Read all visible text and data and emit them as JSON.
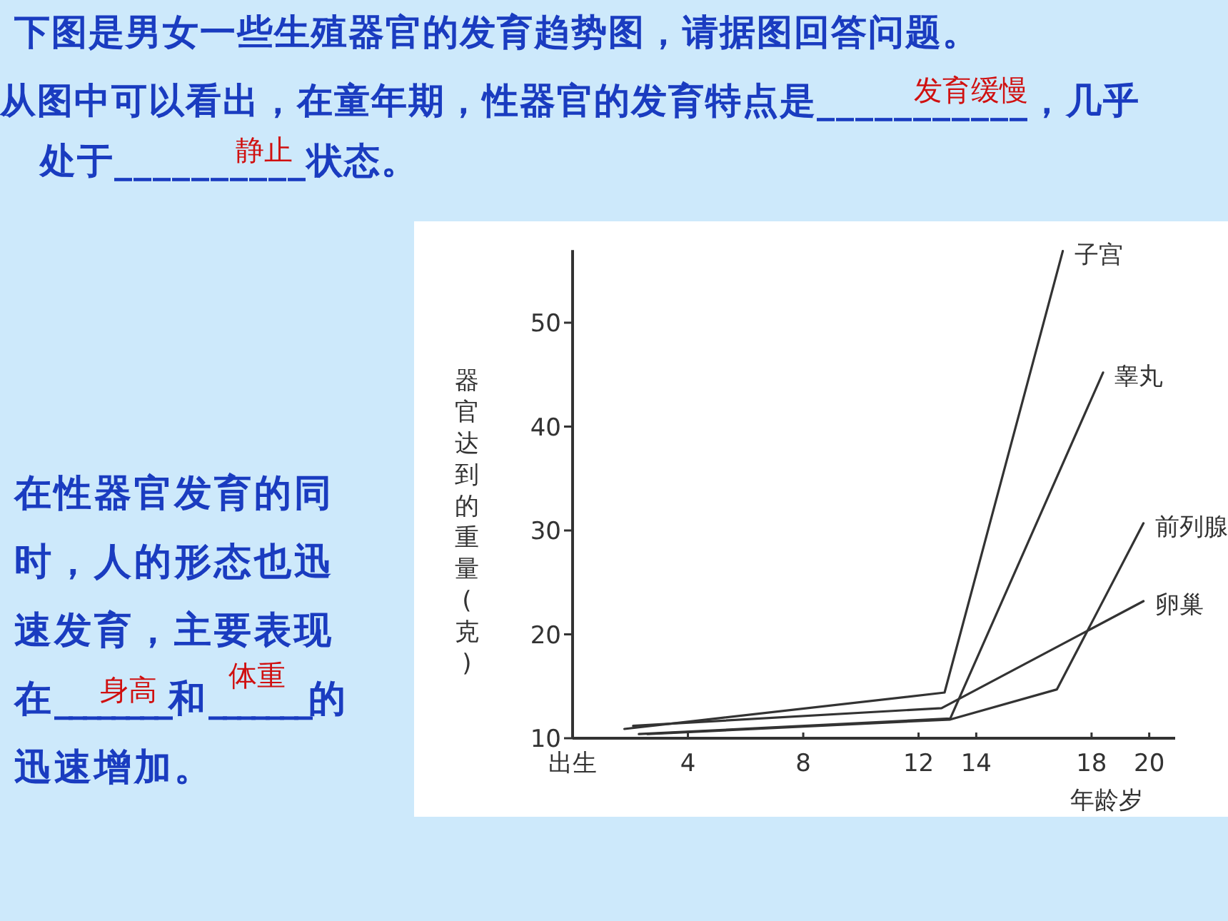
{
  "chart_data": {
    "type": "line",
    "xlabel": "年龄岁",
    "ylabel": "器官达到的重量(克)",
    "xlim": [
      0,
      20.9
    ],
    "ylim": [
      10,
      57
    ],
    "xticks": [
      {
        "value": 0,
        "label": "出生"
      },
      4,
      8,
      12,
      14,
      18,
      20
    ],
    "yticks": [
      10,
      20,
      30,
      40,
      50
    ],
    "series": [
      {
        "name": "子宫",
        "color": "#333333",
        "x": [
          1.8,
          12.9,
          17
        ],
        "values": [
          10.9,
          14.4,
          56.9
        ]
      },
      {
        "name": "睾丸",
        "color": "#333333",
        "x": [
          2.3,
          13.1,
          18.4
        ],
        "values": [
          10.4,
          11.9,
          45.2
        ]
      },
      {
        "name": "前列腺",
        "color": "#333333",
        "x": [
          2.6,
          13.1,
          16.8,
          19.8
        ],
        "values": [
          10.4,
          11.8,
          14.7,
          30.7
        ]
      },
      {
        "name": "卵巢",
        "color": "#333333",
        "x": [
          2.1,
          12.8,
          19.8
        ],
        "values": [
          11.2,
          12.9,
          23.2
        ]
      }
    ],
    "annotations": [
      "下图是男女一些生殖器官的发育趋势图，请据图回答问题。",
      "从图中可以看出，在童年期，性器官的发育特点是___________，几乎",
      "发育缓慢",
      "处于__________状态。",
      "静止",
      "在性器官发育的同时，人的形态也迅速发育，主要表现在________和_______的迅速增加。",
      "身高",
      "体重"
    ]
  }
}
